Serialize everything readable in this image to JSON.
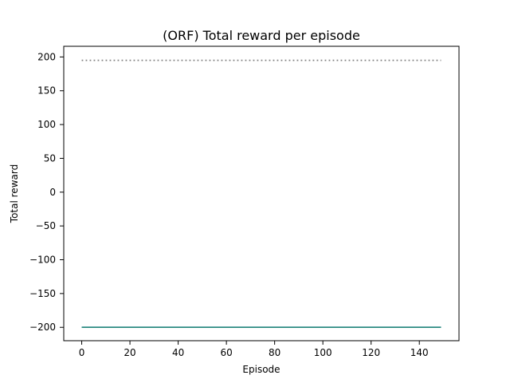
{
  "chart_data": {
    "type": "line",
    "title": "(ORF) Total reward per episode",
    "xlabel": "Episode",
    "ylabel": "Total reward",
    "xlim": [
      -7.45,
      156.45
    ],
    "ylim": [
      -219.8,
      215.8
    ],
    "xticks": [
      0,
      20,
      40,
      60,
      80,
      100,
      120,
      140
    ],
    "yticks": [
      -200,
      -150,
      -100,
      -50,
      0,
      50,
      100,
      150,
      200
    ],
    "xtick_labels": [
      "0",
      "20",
      "40",
      "60",
      "80",
      "100",
      "120",
      "140"
    ],
    "ytick_labels": [
      "−200",
      "−150",
      "−100",
      "−50",
      "0",
      "50",
      "100",
      "150",
      "200"
    ],
    "grid": false,
    "series": [
      {
        "x": [
          0,
          149
        ],
        "values": [
          -200,
          -200
        ],
        "color": "#1f77b4",
        "style": "solid"
      },
      {
        "x": [
          0,
          149
        ],
        "values": [
          -200,
          -200
        ],
        "color": "#2a8a7e",
        "style": "solid"
      },
      {
        "x": [
          0,
          149
        ],
        "values": [
          195,
          195
        ],
        "color": "#808080",
        "style": "dotted"
      }
    ]
  }
}
